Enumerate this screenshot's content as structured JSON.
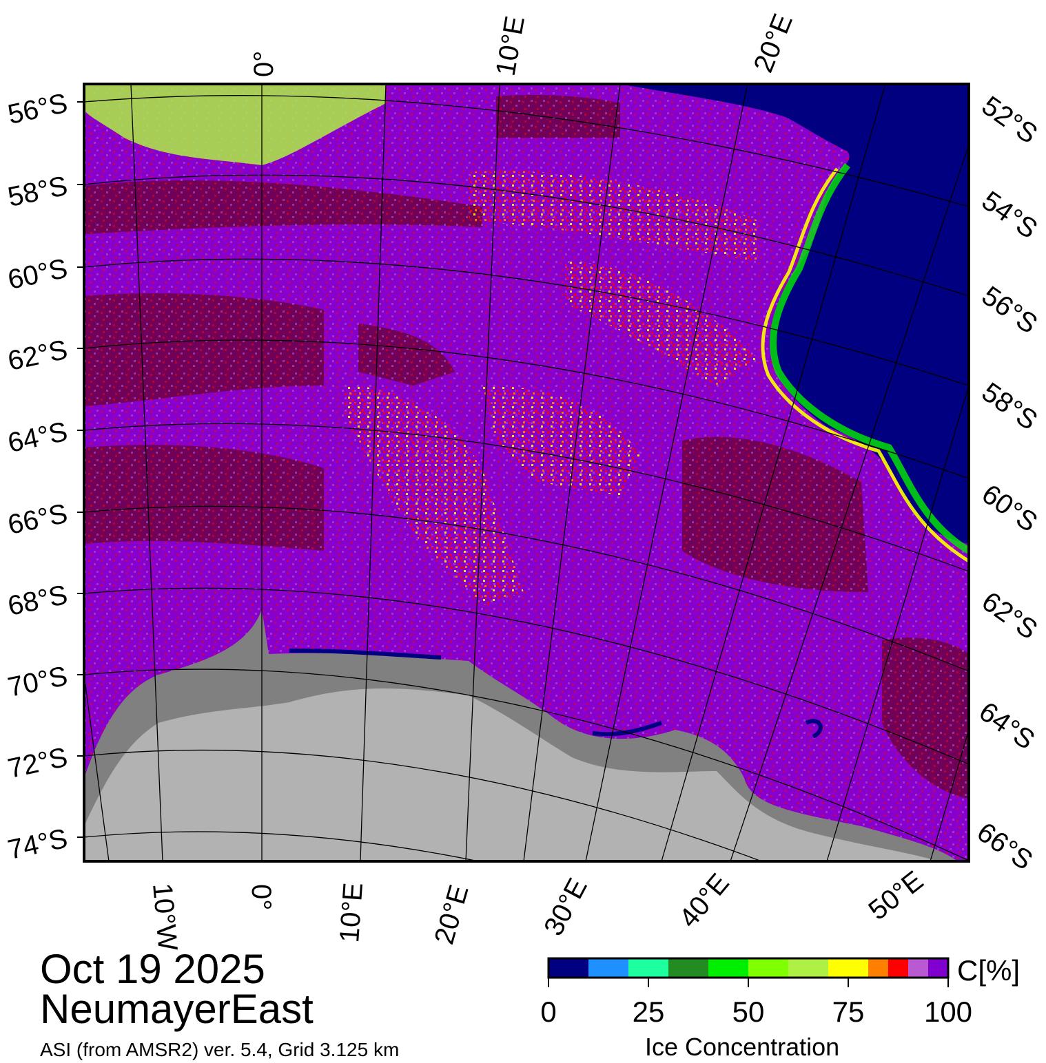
{
  "map": {
    "date": "Oct 19 2025",
    "region": "NeumayerEast",
    "product": "ASI (from AMSR2) ver. 5.4,  Grid 3.125 km",
    "left_labels": [
      "56°S",
      "58°S",
      "60°S",
      "62°S",
      "64°S",
      "66°S",
      "68°S",
      "70°S",
      "72°S",
      "74°S"
    ],
    "right_labels": [
      "52°S",
      "54°S",
      "56°S",
      "58°S",
      "60°S",
      "62°S",
      "64°S",
      "66°S"
    ],
    "top_labels": [
      "0°",
      "10°E",
      "20°E"
    ],
    "bottom_labels": [
      "10°W",
      "0°",
      "10°E",
      "20°E",
      "30°E",
      "40°E",
      "50°E"
    ],
    "colors": {
      "ocean": "#000080",
      "ice_full": "#700058",
      "ice_high": "#8800cc",
      "land": "#b2b2b2",
      "ice_shelf": "#808080"
    }
  },
  "colorbar": {
    "title": "Ice Concentration",
    "unit": "C[%]",
    "ticks": [
      "0",
      "25",
      "50",
      "75",
      "100"
    ],
    "colors": [
      "#000080",
      "#1e90ff",
      "#1effa0",
      "#228b22",
      "#00ee00",
      "#7fff00",
      "#aef043",
      "#ffff00",
      "#ff8000",
      "#ff0000",
      "#b95ad3",
      "#8000d0"
    ]
  }
}
